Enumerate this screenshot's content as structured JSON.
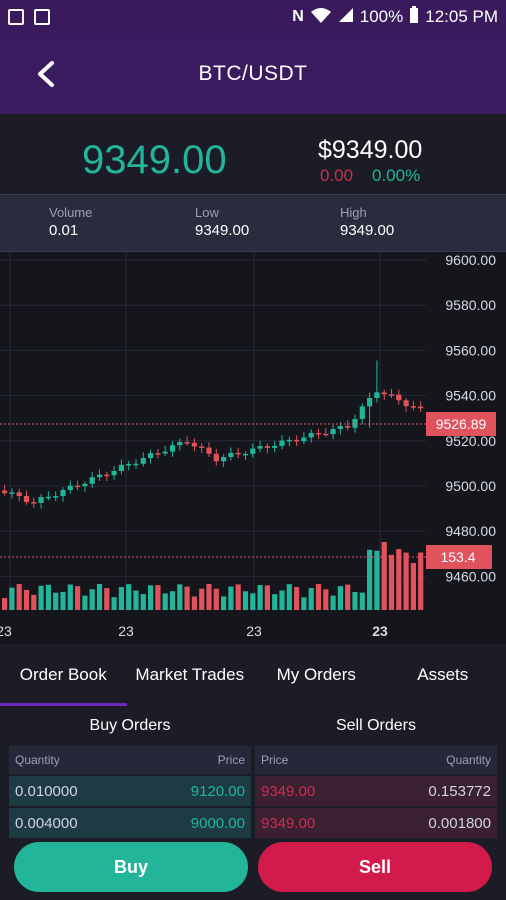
{
  "status_bar": {
    "battery": "100%",
    "time": "12:05 PM"
  },
  "header": {
    "title": "BTC/USDT"
  },
  "price": {
    "last": "9349.00",
    "usd": "$9349.00",
    "change_abs": "0.00",
    "change_pct": "0.00%"
  },
  "stats": [
    {
      "label": "Volume",
      "value": "0.01"
    },
    {
      "label": "Low",
      "value": "9349.00"
    },
    {
      "label": "High",
      "value": "9349.00"
    }
  ],
  "chart_data": {
    "type": "candlestick",
    "y_ticks": [
      "9600.00",
      "9580.00",
      "9560.00",
      "9540.00",
      "9520.00",
      "9500.00",
      "9480.00",
      "9460.00"
    ],
    "ylim": [
      9460,
      9600
    ],
    "x_ticks": [
      "23",
      "23",
      "23",
      "23"
    ],
    "last_price_label": "9526.89",
    "volume_label": "153.4",
    "colors": {
      "up": "#22b59a",
      "down": "#e0535c",
      "grid": "#262838"
    }
  },
  "tabs": [
    {
      "label": "Order Book",
      "active": true
    },
    {
      "label": "Market Trades",
      "active": false
    },
    {
      "label": "My Orders",
      "active": false
    },
    {
      "label": "Assets",
      "active": false
    }
  ],
  "order_book": {
    "buy_title": "Buy Orders",
    "sell_title": "Sell Orders",
    "buy_headers": [
      "Quantity",
      "Price"
    ],
    "sell_headers": [
      "Price",
      "Quantity"
    ],
    "buy_rows": [
      {
        "quantity": "0.010000",
        "price": "9120.00"
      },
      {
        "quantity": "0.004000",
        "price": "9000.00"
      }
    ],
    "sell_rows": [
      {
        "price": "9349.00",
        "quantity": "0.153772"
      },
      {
        "price": "9349.00",
        "quantity": "0.001800"
      }
    ]
  },
  "actions": {
    "buy": "Buy",
    "sell": "Sell"
  }
}
